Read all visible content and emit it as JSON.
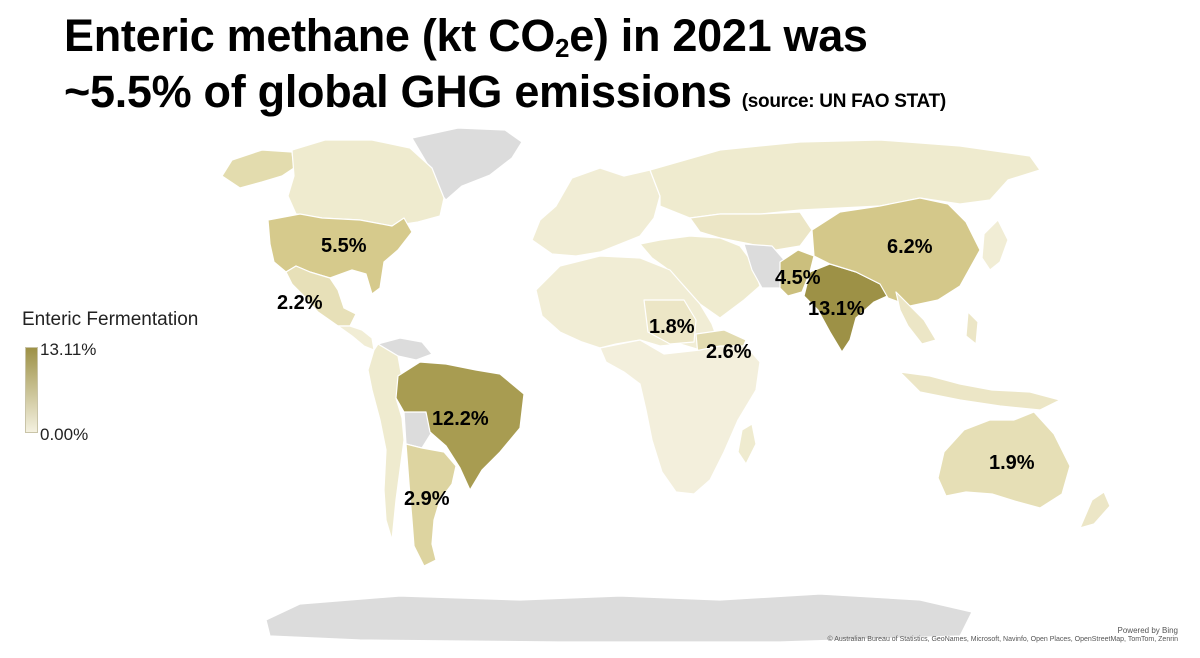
{
  "title": {
    "line1_prefix": "Enteric methane (kt CO",
    "line1_sub": "2",
    "line1_suffix": "e) in 2021 was",
    "line2": "~5.5% of global GHG emissions",
    "source": "(source: UN FAO STAT)"
  },
  "legend": {
    "title": "Enteric Fermentation",
    "max_label": "13.11%",
    "min_label": "0.00%",
    "color_max": "#9d9146",
    "color_min": "#f4f1e0",
    "no_data_color": "#dcdcdc"
  },
  "labels": [
    {
      "region": "united-states",
      "text": "5.5%"
    },
    {
      "region": "mexico",
      "text": "2.2%"
    },
    {
      "region": "brazil",
      "text": "12.2%"
    },
    {
      "region": "argentina",
      "text": "2.9%"
    },
    {
      "region": "china",
      "text": "6.2%"
    },
    {
      "region": "pakistan",
      "text": "4.5%"
    },
    {
      "region": "india",
      "text": "13.1%"
    },
    {
      "region": "sudan",
      "text": "1.8%"
    },
    {
      "region": "ethiopia",
      "text": "2.6%"
    },
    {
      "region": "australia",
      "text": "1.9%"
    }
  ],
  "credits": {
    "powered_by": "Powered by Bing",
    "attribution": "© Australian Bureau of Statistics, GeoNames, Microsoft, Navinfo, Open Places, OpenStreetMap, TomTom, Zenrin"
  }
}
